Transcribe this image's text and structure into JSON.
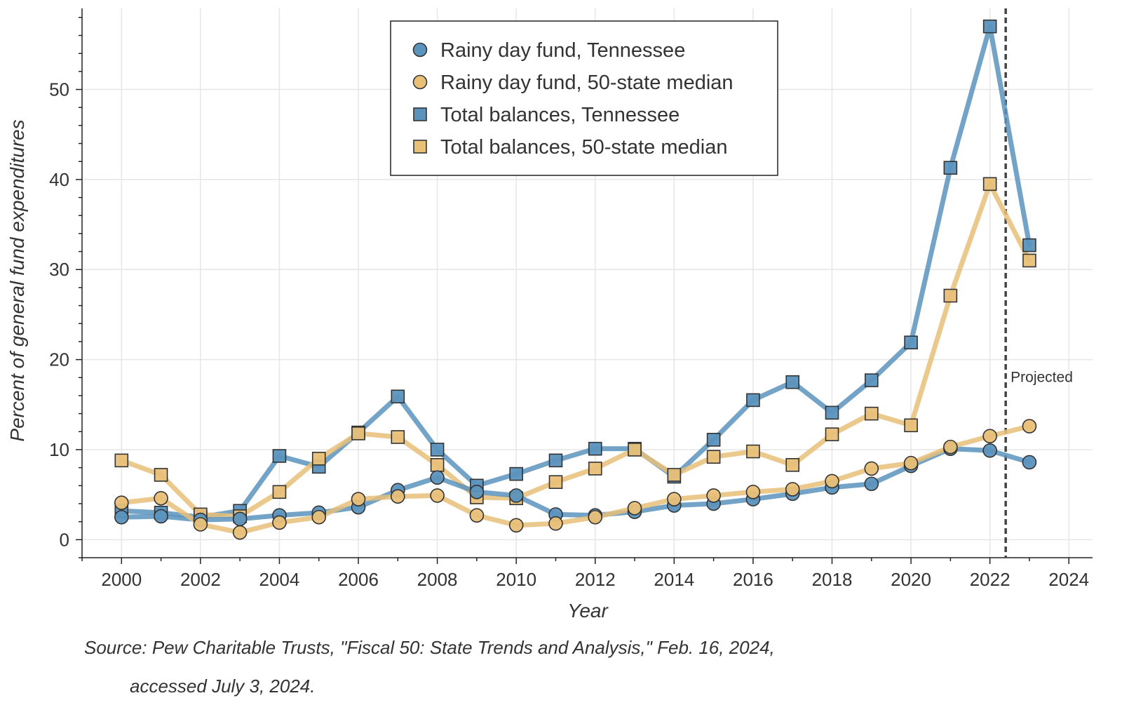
{
  "chart_data": {
    "type": "line",
    "xlabel": "Year",
    "ylabel": "Percent of general fund expenditures",
    "xlim": [
      1999,
      2024.6
    ],
    "ylim": [
      -2,
      59
    ],
    "xticks": [
      2000,
      2002,
      2004,
      2006,
      2008,
      2010,
      2012,
      2014,
      2016,
      2018,
      2020,
      2022,
      2024
    ],
    "yticks": [
      0,
      10,
      20,
      30,
      40,
      50
    ],
    "grid": true,
    "legend_position": "top-center",
    "x": [
      2000,
      2001,
      2002,
      2003,
      2004,
      2005,
      2006,
      2007,
      2008,
      2009,
      2010,
      2011,
      2012,
      2013,
      2014,
      2015,
      2016,
      2017,
      2018,
      2019,
      2020,
      2021,
      2022,
      2023
    ],
    "series": [
      {
        "name": "Rainy day fund, Tennessee",
        "marker": "circle",
        "color": "#5b93bd",
        "values": [
          2.5,
          2.6,
          2.2,
          2.3,
          2.7,
          3.0,
          3.6,
          5.5,
          6.9,
          5.3,
          4.9,
          2.8,
          2.7,
          3.1,
          3.8,
          4.0,
          4.5,
          5.1,
          5.8,
          6.2,
          8.2,
          10.1,
          9.9,
          8.6
        ]
      },
      {
        "name": "Rainy day fund, 50-state median",
        "marker": "circle",
        "color": "#e8c078",
        "values": [
          4.1,
          4.6,
          1.7,
          0.8,
          1.9,
          2.5,
          4.5,
          4.8,
          4.9,
          2.7,
          1.6,
          1.8,
          2.5,
          3.5,
          4.5,
          4.9,
          5.3,
          5.6,
          6.5,
          7.9,
          8.5,
          10.3,
          11.5,
          12.6
        ]
      },
      {
        "name": "Total balances, Tennessee",
        "marker": "square",
        "color": "#5b93bd",
        "values": [
          3.2,
          3.0,
          2.5,
          3.2,
          9.3,
          8.1,
          11.9,
          15.9,
          10.0,
          6.0,
          7.3,
          8.8,
          10.1,
          10.1,
          7.0,
          11.1,
          15.5,
          17.5,
          14.1,
          17.7,
          21.9,
          41.3,
          57.0,
          32.7
        ]
      },
      {
        "name": "Total balances, 50-state median",
        "marker": "square",
        "color": "#e8c078",
        "values": [
          8.8,
          7.2,
          2.8,
          2.6,
          5.3,
          9.0,
          11.8,
          11.4,
          8.3,
          4.7,
          4.6,
          6.4,
          7.9,
          10.0,
          7.2,
          9.2,
          9.8,
          8.3,
          11.7,
          14.0,
          12.7,
          27.1,
          39.5,
          31.0
        ]
      }
    ],
    "annotations": [
      {
        "text": "Projected",
        "x_line": 2022.4
      }
    ]
  },
  "source_line1": "Source: Pew Charitable Trusts, \"Fiscal 50: State Trends and Analysis,\" Feb. 16, 2024,",
  "source_line2": "accessed July 3, 2024."
}
